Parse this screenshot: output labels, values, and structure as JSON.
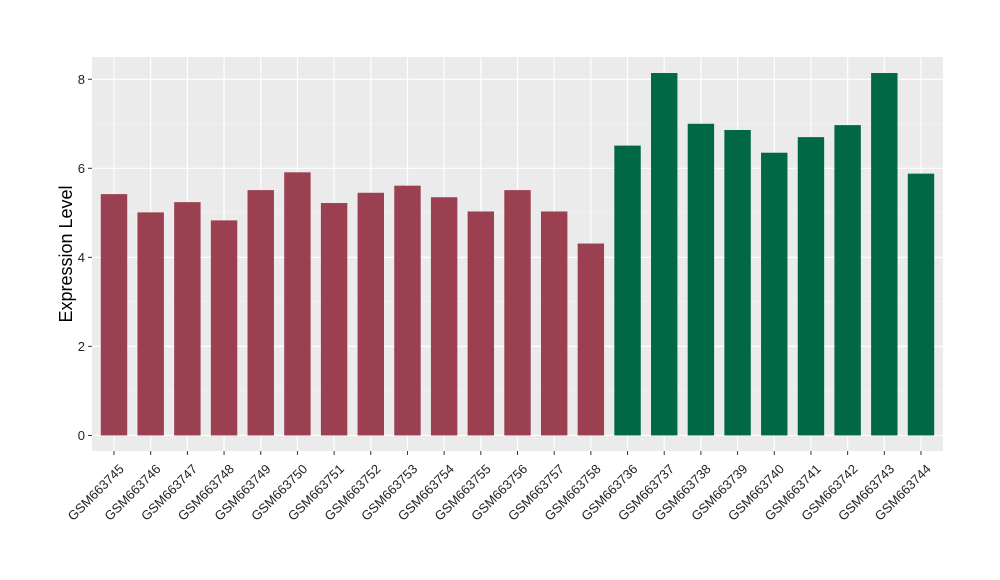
{
  "chart_data": {
    "type": "bar",
    "title": "",
    "xlabel": "",
    "ylabel": "Expression Level",
    "ylim": [
      -0.35,
      8.5
    ],
    "yticks": [
      0,
      2,
      4,
      6,
      8
    ],
    "grid": true,
    "categories": [
      "GSM663745",
      "GSM663746",
      "GSM663747",
      "GSM663748",
      "GSM663749",
      "GSM663750",
      "GSM663751",
      "GSM663752",
      "GSM663753",
      "GSM663754",
      "GSM663755",
      "GSM663756",
      "GSM663757",
      "GSM663758",
      "GSM663736",
      "GSM663737",
      "GSM663738",
      "GSM663739",
      "GSM663740",
      "GSM663741",
      "GSM663742",
      "GSM663743",
      "GSM663744"
    ],
    "values": [
      5.42,
      5.01,
      5.24,
      4.83,
      5.51,
      5.91,
      5.22,
      5.45,
      5.61,
      5.35,
      5.03,
      5.51,
      5.03,
      4.31,
      6.51,
      8.14,
      7.0,
      6.86,
      6.35,
      6.7,
      6.97,
      8.14,
      5.88
    ],
    "bar_colors": [
      "#9a4050",
      "#9a4050",
      "#9a4050",
      "#9a4050",
      "#9a4050",
      "#9a4050",
      "#9a4050",
      "#9a4050",
      "#9a4050",
      "#9a4050",
      "#9a4050",
      "#9a4050",
      "#9a4050",
      "#9a4050",
      "#006845",
      "#006845",
      "#006845",
      "#006845",
      "#006845",
      "#006845",
      "#006845",
      "#006845",
      "#006845"
    ],
    "colors": {
      "panel_background": "#ebebeb",
      "grid_major": "#ffffff",
      "grid_minor": "#f4f4f4",
      "tick_mark": "#333333"
    }
  }
}
